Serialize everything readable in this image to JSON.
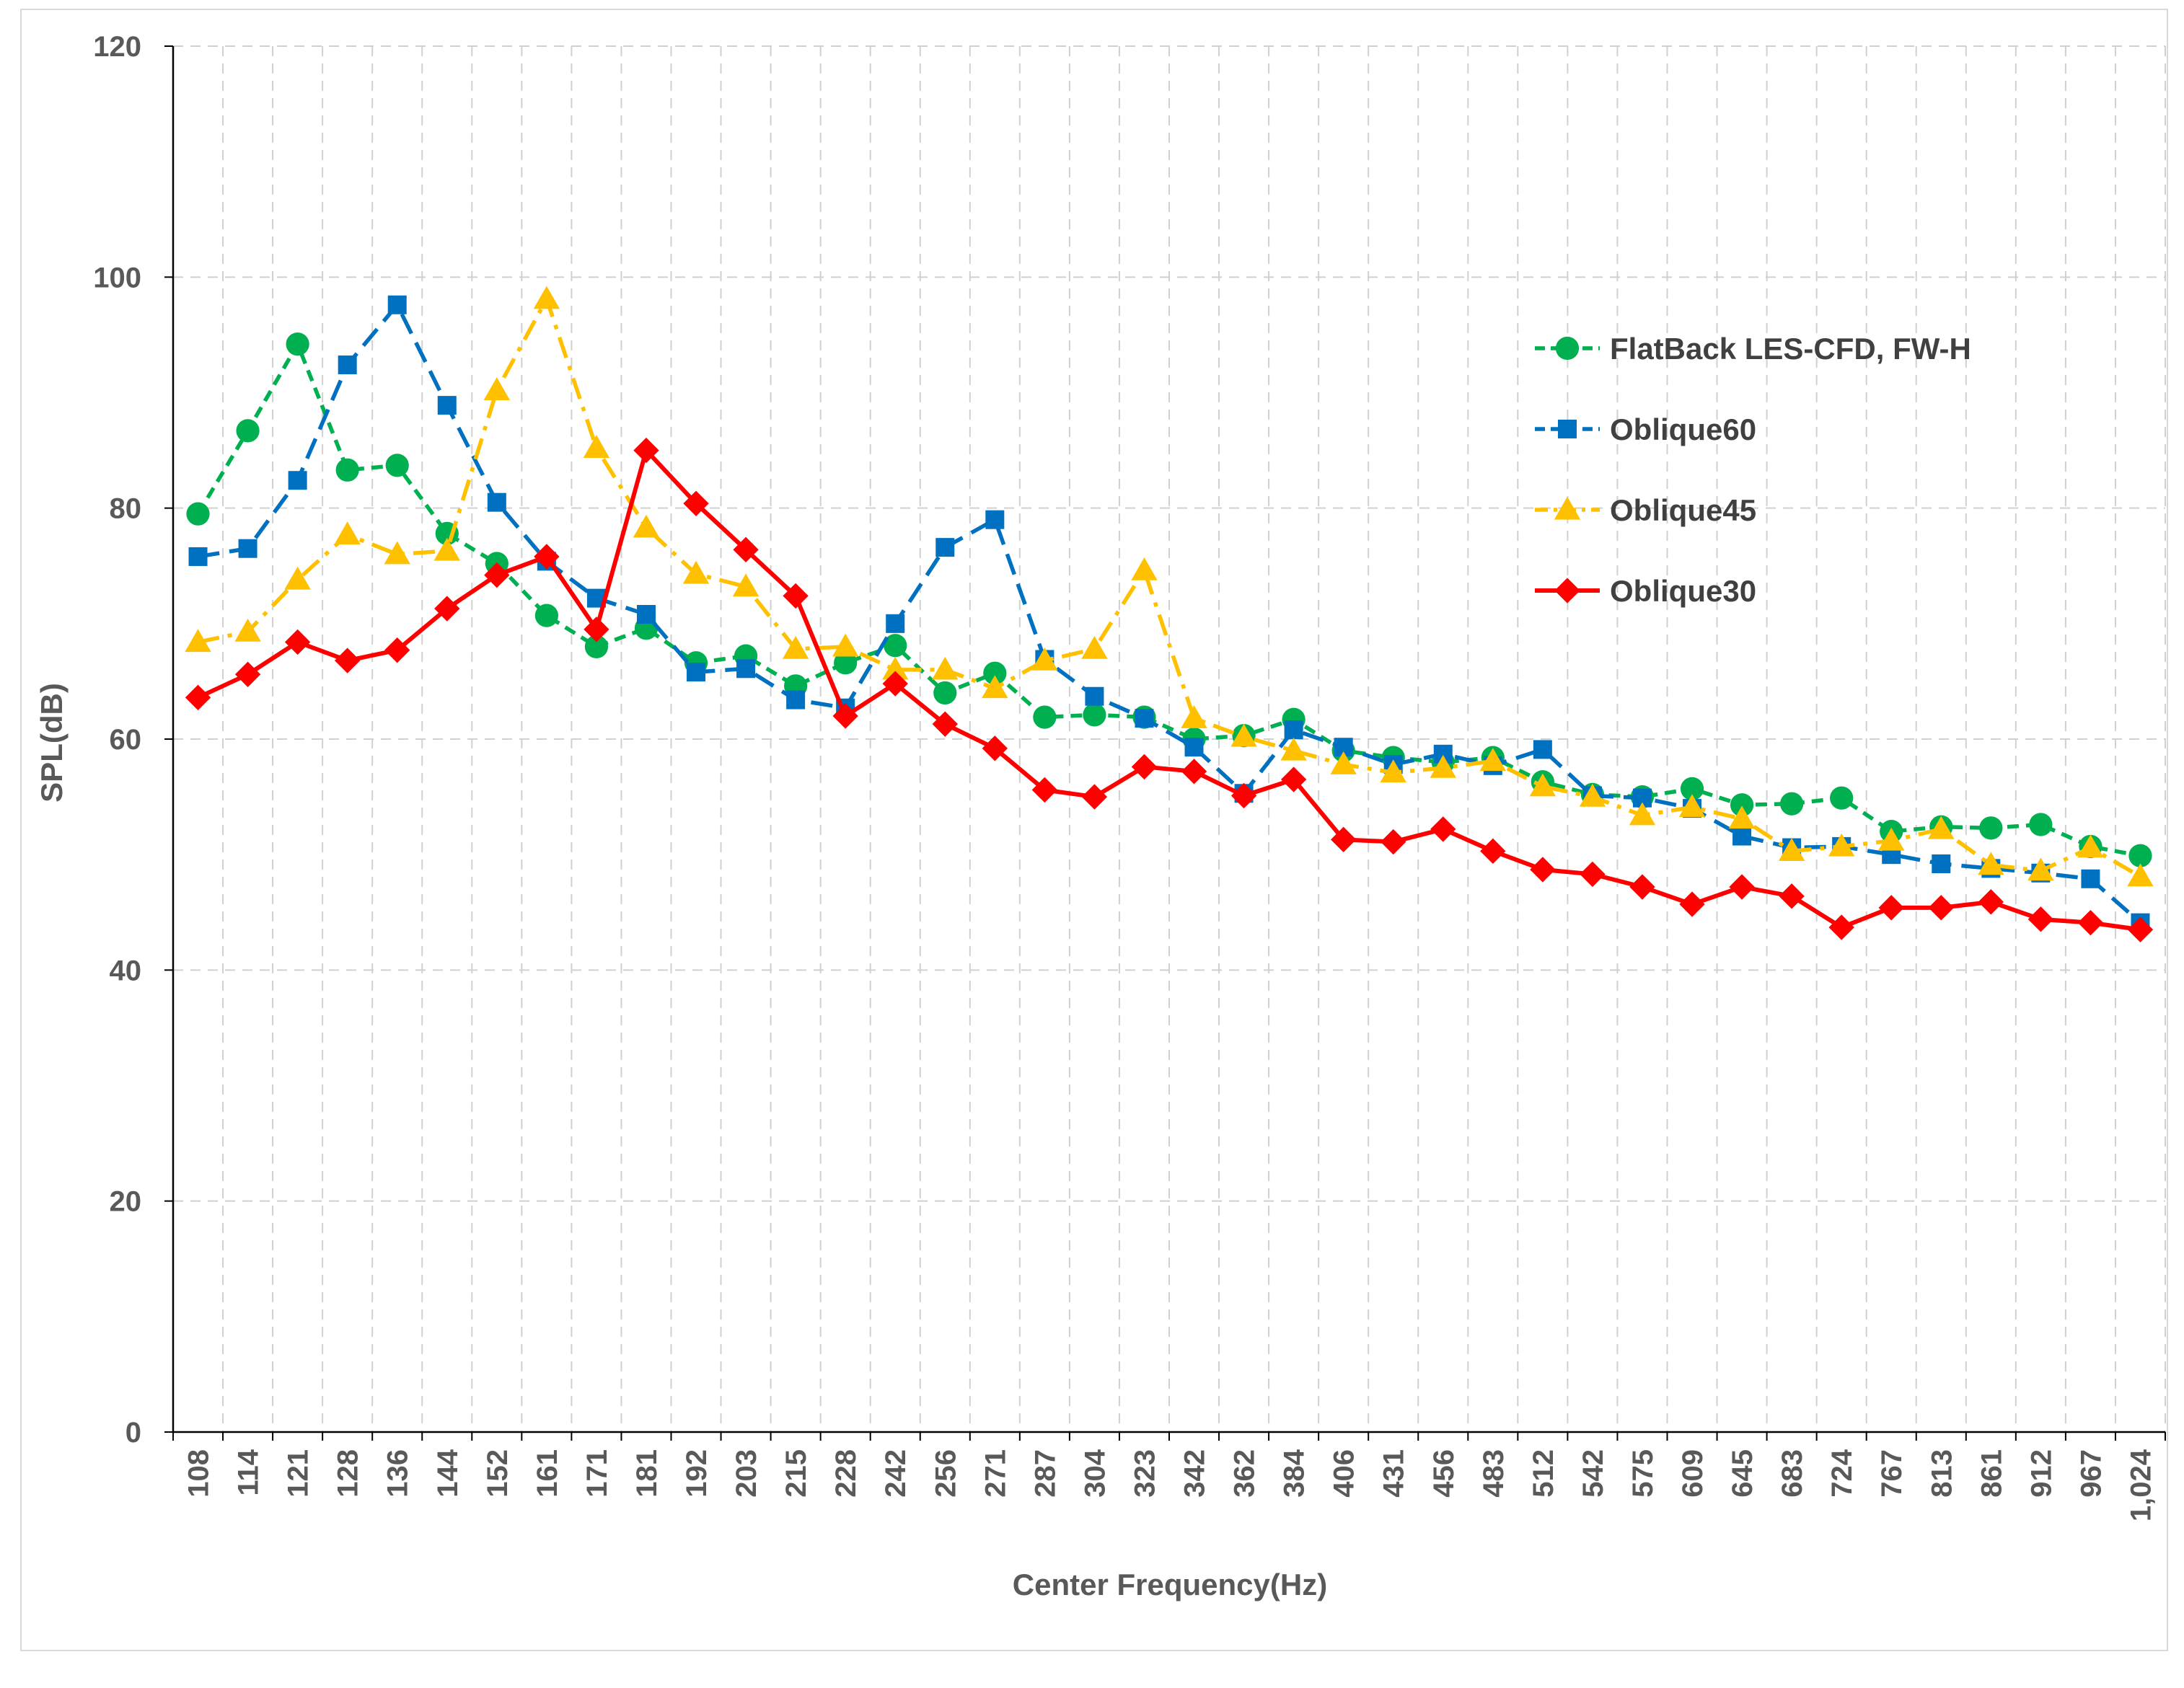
{
  "chart_data": {
    "type": "line",
    "title": "",
    "xlabel": "Center Frequency(Hz)",
    "ylabel": "SPL(dB)",
    "ylim": [
      0,
      120
    ],
    "yticks": [
      "0",
      "20",
      "40",
      "60",
      "80",
      "100",
      "120"
    ],
    "grid": "dashed vertical and horizontal",
    "legend_position": "upper-right",
    "categories": [
      "108",
      "114",
      "121",
      "128",
      "136",
      "144",
      "152",
      "161",
      "171",
      "181",
      "192",
      "203",
      "215",
      "228",
      "242",
      "256",
      "271",
      "287",
      "304",
      "323",
      "342",
      "362",
      "384",
      "406",
      "431",
      "456",
      "483",
      "512",
      "542",
      "575",
      "609",
      "645",
      "683",
      "724",
      "767",
      "813",
      "861",
      "912",
      "967",
      "1,024"
    ],
    "series": [
      {
        "name": "FlatBack LES-CFD, FW-H",
        "color": "#00b050",
        "marker": "circle",
        "dash": "short-dash",
        "values": [
          79.5,
          86.7,
          94.2,
          83.3,
          83.7,
          77.8,
          75.2,
          70.7,
          68.0,
          69.6,
          66.6,
          67.2,
          64.6,
          66.6,
          68.1,
          64.0,
          65.7,
          61.9,
          62.1,
          61.9,
          60.0,
          60.3,
          61.7,
          59.0,
          58.4,
          58.0,
          58.4,
          56.3,
          55.2,
          55.0,
          55.7,
          54.3,
          54.4,
          54.9,
          52.0,
          52.4,
          52.3,
          52.6,
          50.7,
          49.9
        ]
      },
      {
        "name": "Oblique60",
        "color": "#0070c0",
        "marker": "square",
        "dash": "long-dash",
        "values": [
          75.8,
          76.5,
          82.4,
          92.4,
          97.6,
          88.9,
          80.5,
          75.4,
          72.2,
          70.8,
          65.8,
          66.1,
          63.4,
          62.7,
          70.0,
          76.6,
          79.0,
          66.9,
          63.7,
          61.8,
          59.3,
          55.3,
          60.8,
          59.3,
          57.8,
          58.7,
          57.7,
          59.1,
          55.1,
          54.9,
          54.0,
          51.6,
          50.6,
          50.7,
          50.0,
          49.2,
          48.8,
          48.4,
          47.9,
          44.1
        ]
      },
      {
        "name": "Oblique45",
        "color": "#ffc000",
        "marker": "triangle",
        "dash": "dash-dot",
        "values": [
          68.4,
          69.3,
          73.8,
          77.7,
          76.0,
          76.3,
          90.2,
          98.1,
          85.2,
          78.3,
          74.3,
          73.2,
          67.8,
          68.0,
          66.0,
          66.0,
          64.4,
          66.8,
          67.8,
          74.6,
          61.8,
          60.2,
          59.0,
          57.8,
          57.1,
          57.5,
          58.1,
          55.9,
          55.0,
          53.4,
          54.1,
          53.1,
          50.3,
          50.7,
          51.2,
          52.2,
          49.1,
          48.6,
          50.6,
          48.1
        ]
      },
      {
        "name": "Oblique30",
        "color": "#ff0000",
        "marker": "diamond",
        "dash": "solid",
        "values": [
          63.6,
          65.6,
          68.4,
          66.8,
          67.7,
          71.3,
          74.2,
          75.8,
          69.5,
          85.0,
          80.4,
          76.4,
          72.4,
          62.0,
          64.8,
          61.3,
          59.2,
          55.6,
          55.0,
          57.6,
          57.2,
          55.1,
          56.5,
          51.3,
          51.1,
          52.2,
          50.3,
          48.7,
          48.3,
          47.2,
          45.7,
          47.2,
          46.4,
          43.7,
          45.4,
          45.4,
          45.9,
          44.4,
          44.1,
          43.5
        ]
      }
    ]
  }
}
